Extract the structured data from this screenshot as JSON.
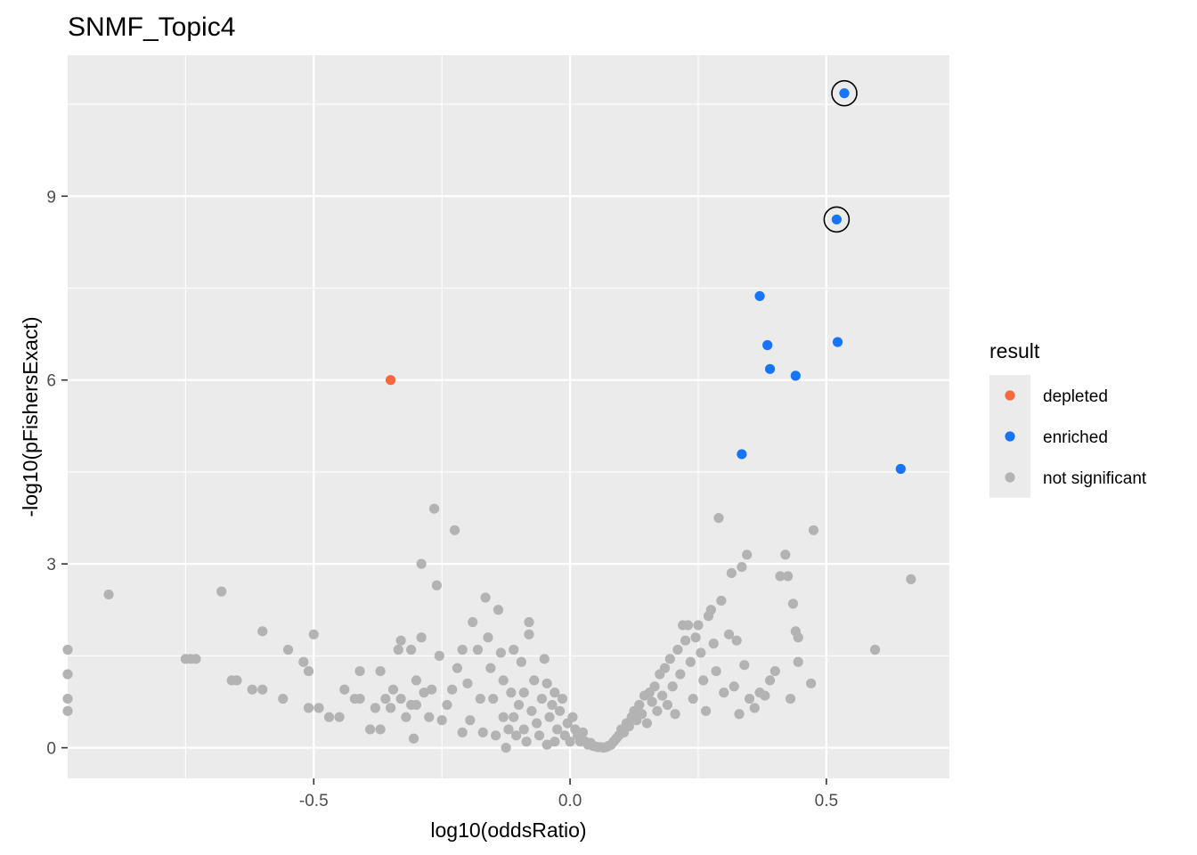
{
  "chart_data": {
    "type": "scatter",
    "title": "SNMF_Topic4",
    "xlabel": "log10(oddsRatio)",
    "ylabel": "-log10(pFishersExact)",
    "xlim": [
      -0.98,
      0.74
    ],
    "ylim": [
      -0.5,
      11.3
    ],
    "x_ticks": [
      -0.5,
      0.0,
      0.5
    ],
    "x_tick_labels": [
      "-0.5",
      "0.0",
      "0.5"
    ],
    "y_ticks": [
      0,
      3,
      6,
      9
    ],
    "y_tick_labels": [
      "0",
      "3",
      "6",
      "9"
    ],
    "grid": true,
    "legend": {
      "title": "result",
      "position": "right",
      "entries": [
        {
          "label": "depleted",
          "color": "#f8673d"
        },
        {
          "label": "enriched",
          "color": "#1874f7"
        },
        {
          "label": "not significant",
          "color": "#b3b3b3"
        }
      ]
    },
    "series": [
      {
        "name": "depleted",
        "color": "#f8673d",
        "points": [
          [
            -0.35,
            6.0
          ]
        ]
      },
      {
        "name": "enriched",
        "color": "#1874f7",
        "points": [
          [
            0.535,
            10.68
          ],
          [
            0.52,
            8.62
          ],
          [
            0.37,
            7.37
          ],
          [
            0.385,
            6.57
          ],
          [
            0.522,
            6.62
          ],
          [
            0.39,
            6.18
          ],
          [
            0.44,
            6.07
          ],
          [
            0.335,
            4.79
          ],
          [
            0.645,
            4.55
          ]
        ]
      },
      {
        "name": "not significant",
        "color": "#b3b3b3",
        "points": [
          [
            -0.98,
            1.6
          ],
          [
            -0.98,
            1.2
          ],
          [
            -0.98,
            0.8
          ],
          [
            -0.98,
            0.6
          ],
          [
            -0.9,
            2.5
          ],
          [
            -0.75,
            1.45
          ],
          [
            -0.74,
            1.45
          ],
          [
            -0.73,
            1.45
          ],
          [
            -0.68,
            2.55
          ],
          [
            -0.66,
            1.1
          ],
          [
            -0.65,
            1.1
          ],
          [
            -0.62,
            0.95
          ],
          [
            -0.6,
            1.9
          ],
          [
            -0.6,
            0.95
          ],
          [
            -0.56,
            0.8
          ],
          [
            -0.55,
            1.6
          ],
          [
            -0.52,
            1.4
          ],
          [
            -0.51,
            1.25
          ],
          [
            -0.51,
            0.65
          ],
          [
            -0.5,
            1.85
          ],
          [
            -0.49,
            0.65
          ],
          [
            -0.47,
            0.5
          ],
          [
            -0.45,
            0.5
          ],
          [
            -0.44,
            0.95
          ],
          [
            -0.42,
            0.8
          ],
          [
            -0.41,
            1.25
          ],
          [
            -0.41,
            0.8
          ],
          [
            -0.39,
            0.3
          ],
          [
            -0.38,
            0.65
          ],
          [
            -0.37,
            1.25
          ],
          [
            -0.37,
            0.3
          ],
          [
            -0.36,
            0.8
          ],
          [
            -0.35,
            0.65
          ],
          [
            -0.345,
            0.95
          ],
          [
            -0.335,
            1.6
          ],
          [
            -0.33,
            1.75
          ],
          [
            -0.33,
            0.8
          ],
          [
            -0.32,
            0.5
          ],
          [
            -0.31,
            1.6
          ],
          [
            -0.31,
            0.7
          ],
          [
            -0.305,
            0.15
          ],
          [
            -0.3,
            1.1
          ],
          [
            -0.3,
            0.7
          ],
          [
            -0.29,
            1.8
          ],
          [
            -0.29,
            3.0
          ],
          [
            -0.285,
            0.9
          ],
          [
            -0.275,
            0.5
          ],
          [
            -0.27,
            0.95
          ],
          [
            -0.265,
            3.9
          ],
          [
            -0.26,
            2.65
          ],
          [
            -0.255,
            1.5
          ],
          [
            -0.25,
            0.45
          ],
          [
            -0.24,
            0.7
          ],
          [
            -0.23,
            0.95
          ],
          [
            -0.225,
            3.55
          ],
          [
            -0.22,
            1.3
          ],
          [
            -0.21,
            1.6
          ],
          [
            -0.21,
            0.25
          ],
          [
            -0.2,
            1.05
          ],
          [
            -0.195,
            0.45
          ],
          [
            -0.19,
            2.05
          ],
          [
            -0.18,
            1.6
          ],
          [
            -0.175,
            0.8
          ],
          [
            -0.17,
            0.25
          ],
          [
            -0.165,
            2.45
          ],
          [
            -0.16,
            1.8
          ],
          [
            -0.155,
            1.3
          ],
          [
            -0.15,
            0.8
          ],
          [
            -0.145,
            0.2
          ],
          [
            -0.14,
            2.25
          ],
          [
            -0.135,
            1.55
          ],
          [
            -0.13,
            1.1
          ],
          [
            -0.13,
            0.5
          ],
          [
            -0.125,
            0.0
          ],
          [
            -0.12,
            0.3
          ],
          [
            -0.115,
            0.9
          ],
          [
            -0.11,
            1.6
          ],
          [
            -0.11,
            0.5
          ],
          [
            -0.105,
            0.2
          ],
          [
            -0.1,
            0.7
          ],
          [
            -0.095,
            1.4
          ],
          [
            -0.09,
            0.9
          ],
          [
            -0.09,
            0.3
          ],
          [
            -0.085,
            0.1
          ],
          [
            -0.08,
            2.05
          ],
          [
            -0.08,
            1.85
          ],
          [
            -0.075,
            0.6
          ],
          [
            -0.07,
            1.1
          ],
          [
            -0.065,
            0.4
          ],
          [
            -0.06,
            0.2
          ],
          [
            -0.055,
            0.8
          ],
          [
            -0.05,
            1.45
          ],
          [
            -0.045,
            1.05
          ],
          [
            -0.045,
            0.05
          ],
          [
            -0.04,
            0.5
          ],
          [
            -0.035,
            0.7
          ],
          [
            -0.03,
            0.9
          ],
          [
            -0.03,
            0.1
          ],
          [
            -0.025,
            0.3
          ],
          [
            -0.02,
            0.6
          ],
          [
            -0.015,
            0.8
          ],
          [
            -0.01,
            0.2
          ],
          [
            -0.005,
            0.4
          ],
          [
            0.0,
            0.1
          ],
          [
            0.005,
            0.5
          ],
          [
            0.01,
            0.3
          ],
          [
            0.015,
            0.2
          ],
          [
            0.02,
            0.1
          ],
          [
            0.025,
            0.25
          ],
          [
            0.03,
            0.1
          ],
          [
            0.035,
            0.05
          ],
          [
            0.04,
            0.08
          ],
          [
            0.045,
            0.03
          ],
          [
            0.05,
            0.02
          ],
          [
            0.055,
            0.01
          ],
          [
            0.06,
            0.01
          ],
          [
            0.065,
            0.0
          ],
          [
            0.07,
            0.01
          ],
          [
            0.075,
            0.03
          ],
          [
            0.08,
            0.05
          ],
          [
            0.085,
            0.1
          ],
          [
            0.09,
            0.15
          ],
          [
            0.095,
            0.2
          ],
          [
            0.1,
            0.3
          ],
          [
            0.105,
            0.25
          ],
          [
            0.11,
            0.4
          ],
          [
            0.115,
            0.35
          ],
          [
            0.12,
            0.5
          ],
          [
            0.125,
            0.6
          ],
          [
            0.13,
            0.45
          ],
          [
            0.135,
            0.7
          ],
          [
            0.14,
            0.55
          ],
          [
            0.145,
            0.85
          ],
          [
            0.15,
            0.4
          ],
          [
            0.155,
            0.9
          ],
          [
            0.16,
            0.75
          ],
          [
            0.165,
            1.0
          ],
          [
            0.17,
            0.6
          ],
          [
            0.175,
            1.2
          ],
          [
            0.18,
            0.85
          ],
          [
            0.185,
            1.3
          ],
          [
            0.19,
            0.7
          ],
          [
            0.195,
            1.45
          ],
          [
            0.2,
            1.0
          ],
          [
            0.205,
            0.55
          ],
          [
            0.21,
            1.6
          ],
          [
            0.215,
            1.2
          ],
          [
            0.22,
            2.0
          ],
          [
            0.225,
            1.75
          ],
          [
            0.23,
            2.0
          ],
          [
            0.235,
            1.4
          ],
          [
            0.24,
            0.8
          ],
          [
            0.245,
            1.8
          ],
          [
            0.25,
            2.0
          ],
          [
            0.255,
            1.55
          ],
          [
            0.26,
            1.1
          ],
          [
            0.265,
            0.6
          ],
          [
            0.27,
            2.15
          ],
          [
            0.275,
            2.25
          ],
          [
            0.28,
            1.7
          ],
          [
            0.285,
            1.25
          ],
          [
            0.29,
            3.75
          ],
          [
            0.295,
            2.4
          ],
          [
            0.3,
            0.9
          ],
          [
            0.31,
            1.85
          ],
          [
            0.315,
            2.85
          ],
          [
            0.32,
            1.0
          ],
          [
            0.325,
            1.75
          ],
          [
            0.33,
            0.55
          ],
          [
            0.335,
            2.95
          ],
          [
            0.34,
            1.35
          ],
          [
            0.345,
            3.15
          ],
          [
            0.35,
            0.8
          ],
          [
            0.36,
            0.65
          ],
          [
            0.37,
            0.9
          ],
          [
            0.38,
            0.85
          ],
          [
            0.39,
            1.1
          ],
          [
            0.4,
            1.25
          ],
          [
            0.41,
            2.8
          ],
          [
            0.42,
            3.15
          ],
          [
            0.425,
            2.8
          ],
          [
            0.43,
            0.8
          ],
          [
            0.435,
            2.35
          ],
          [
            0.44,
            1.9
          ],
          [
            0.445,
            1.8
          ],
          [
            0.445,
            1.4
          ],
          [
            0.47,
            1.05
          ],
          [
            0.475,
            3.55
          ],
          [
            0.595,
            1.6
          ],
          [
            0.665,
            2.75
          ]
        ]
      }
    ],
    "highlighted": [
      [
        0.535,
        10.68
      ],
      [
        0.52,
        8.62
      ]
    ]
  },
  "colors": {
    "panel_background": "#ebebeb",
    "grid": "#ffffff",
    "legend_key_background": "#ebebeb"
  }
}
